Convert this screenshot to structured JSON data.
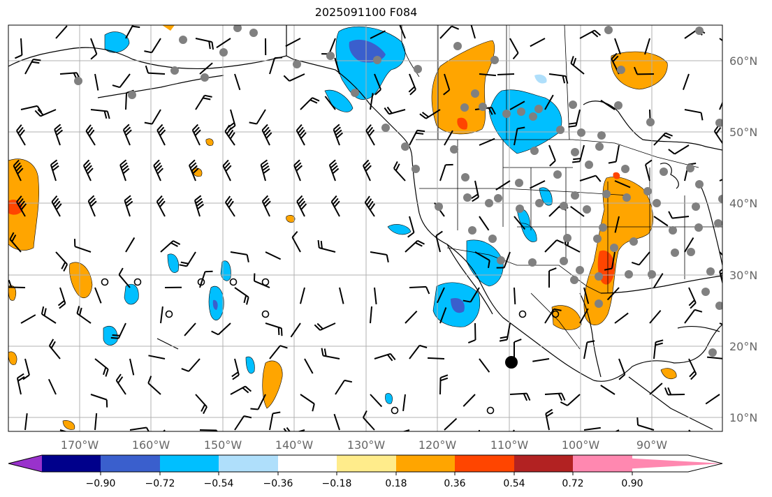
{
  "title": "2025091100 F084",
  "map": {
    "lat_labels": [
      "60°N",
      "50°N",
      "40°N",
      "30°N",
      "20°N",
      "10°N"
    ],
    "lon_labels": [
      "170°W",
      "160°W",
      "150°W",
      "140°W",
      "130°W",
      "120°W",
      "110°W",
      "100°W",
      "90°W"
    ],
    "grid": true
  },
  "colorbar": {
    "tick_labels": [
      "−0.90",
      "−0.72",
      "−0.54",
      "−0.36",
      "−0.18",
      "0.18",
      "0.36",
      "0.54",
      "0.72",
      "0.90"
    ],
    "colors": [
      "#9932cc",
      "#00008b",
      "#3a5fcd",
      "#00bfff",
      "#afdffb",
      "#ffffff",
      "#ffec8b",
      "#ffa500",
      "#ff4500",
      "#b22222",
      "#ff88b0"
    ],
    "extend": "both"
  },
  "markers": {
    "storm_center": "filled black circle",
    "station_dot_color": "#808080"
  }
}
